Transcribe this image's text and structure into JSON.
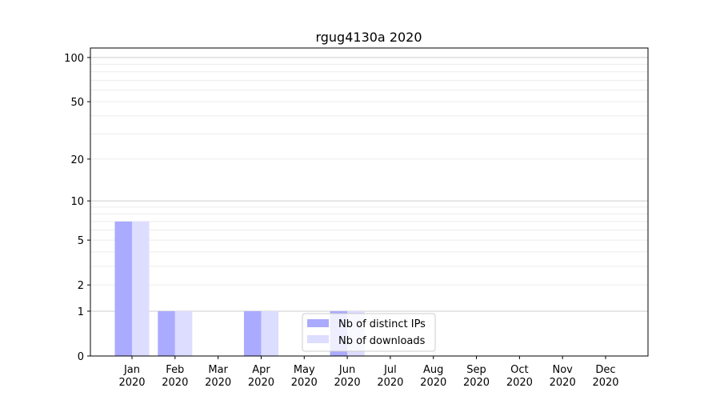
{
  "chart_data": {
    "type": "bar",
    "title": "rgug4130a 2020",
    "xlabel": "",
    "ylabel": "",
    "yscale": "log(1+y)",
    "ylim": [
      0,
      116
    ],
    "yticks": [
      0,
      1,
      2,
      5,
      10,
      20,
      50,
      100
    ],
    "grid": true,
    "legend_position": "bottom-center",
    "categories": [
      "Jan\n2020",
      "Feb\n2020",
      "Mar\n2020",
      "Apr\n2020",
      "May\n2020",
      "Jun\n2020",
      "Jul\n2020",
      "Aug\n2020",
      "Sep\n2020",
      "Oct\n2020",
      "Nov\n2020",
      "Dec\n2020"
    ],
    "series": [
      {
        "name": "Nb of distinct IPs",
        "color": "#aaaaff",
        "values": [
          7,
          1,
          0,
          1,
          0,
          1,
          0,
          0,
          0,
          0,
          0,
          0
        ]
      },
      {
        "name": "Nb of downloads",
        "color": "#ddddff",
        "values": [
          7,
          1,
          0,
          1,
          0,
          1,
          0,
          0,
          0,
          0,
          0,
          0
        ]
      }
    ]
  }
}
